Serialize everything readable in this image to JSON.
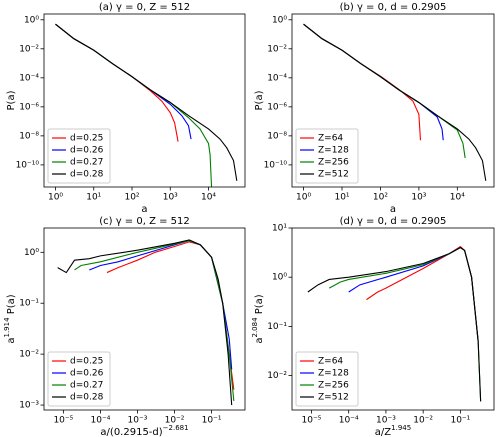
{
  "chart_data": [
    {
      "type": "line",
      "title": "(a) γ = 0, Z = 512",
      "xlabel": [
        "a"
      ],
      "ylabel": [
        "P(a)"
      ],
      "xscale": "log",
      "yscale": "log",
      "legend": "lower left",
      "xlim": [
        0.5,
        90000
      ],
      "ylim": [
        3e-12,
        2.5
      ],
      "xticks": [
        {
          "value": 1,
          "label": "10⁰"
        },
        {
          "value": 10,
          "label": "10¹"
        },
        {
          "value": 100,
          "label": "10²"
        },
        {
          "value": 1000,
          "label": "10³"
        },
        {
          "value": 10000,
          "label": "10⁴"
        }
      ],
      "yticks": [
        {
          "value": 1e-10,
          "label": "10⁻¹⁰"
        },
        {
          "value": 1e-08,
          "label": "10⁻⁸"
        },
        {
          "value": 1e-06,
          "label": "10⁻⁶"
        },
        {
          "value": 0.0001,
          "label": "10⁻⁴"
        },
        {
          "value": 0.01,
          "label": "10⁻²"
        },
        {
          "value": 1,
          "label": "10⁰"
        }
      ],
      "series": [
        {
          "name": "d=0.25",
          "color": "red",
          "x": [
            1,
            3,
            10,
            30,
            100,
            300,
            600,
            1000,
            1300,
            1600
          ],
          "values": [
            0.5,
            0.05,
            0.008,
            0.001,
            0.00012,
            1.3e-05,
            2.5e-06,
            4e-07,
            8e-08,
            4e-09
          ]
        },
        {
          "name": "d=0.26",
          "color": "blue",
          "x": [
            1,
            3,
            10,
            30,
            100,
            300,
            1000,
            2000,
            3000,
            3500
          ],
          "values": [
            0.5,
            0.05,
            0.008,
            0.001,
            0.00012,
            1.5e-05,
            1.5e-06,
            2.5e-07,
            5e-08,
            6e-09
          ]
        },
        {
          "name": "d=0.27",
          "color": "green",
          "x": [
            1,
            3,
            10,
            30,
            100,
            300,
            1000,
            3000,
            6000,
            10000,
            11000,
            12000
          ],
          "values": [
            0.5,
            0.05,
            0.008,
            0.001,
            0.00012,
            1.5e-05,
            2e-06,
            1.8e-07,
            3e-08,
            3e-09,
            5e-10,
            3e-12
          ]
        },
        {
          "name": "d=0.28",
          "color": "black",
          "x": [
            1,
            3,
            10,
            30,
            100,
            300,
            1000,
            3000,
            10000,
            20000,
            30000,
            45000,
            55000
          ],
          "values": [
            0.5,
            0.05,
            0.008,
            0.001,
            0.00012,
            1.5e-05,
            2e-06,
            2.5e-07,
            3e-08,
            6e-09,
            1.5e-09,
            2e-10,
            8e-12
          ]
        }
      ]
    },
    {
      "type": "line",
      "title": "(b) γ = 0, d = 0.2905",
      "xlabel": [
        "a"
      ],
      "ylabel": [
        "P(a)"
      ],
      "xscale": "log",
      "yscale": "log",
      "legend": "lower left",
      "xlim": [
        0.5,
        90000
      ],
      "ylim": [
        3e-12,
        2.5
      ],
      "xticks": [
        {
          "value": 1,
          "label": "10⁰"
        },
        {
          "value": 10,
          "label": "10¹"
        },
        {
          "value": 100,
          "label": "10²"
        },
        {
          "value": 1000,
          "label": "10³"
        },
        {
          "value": 10000,
          "label": "10⁴"
        }
      ],
      "yticks": [
        {
          "value": 1e-10,
          "label": "10⁻¹⁰"
        },
        {
          "value": 1e-08,
          "label": "10⁻⁸"
        },
        {
          "value": 1e-06,
          "label": "10⁻⁶"
        },
        {
          "value": 0.0001,
          "label": "10⁻⁴"
        },
        {
          "value": 0.01,
          "label": "10⁻²"
        },
        {
          "value": 1,
          "label": "10⁰"
        }
      ],
      "series": [
        {
          "name": "Z=64",
          "color": "red",
          "x": [
            1,
            3,
            10,
            30,
            100,
            300,
            700,
            1000,
            1100
          ],
          "values": [
            0.5,
            0.05,
            0.008,
            0.001,
            0.00013,
            1.6e-05,
            2.5e-06,
            3e-07,
            5e-09
          ]
        },
        {
          "name": "Z=128",
          "color": "blue",
          "x": [
            1,
            3,
            10,
            30,
            100,
            300,
            1000,
            3000,
            4000,
            4300
          ],
          "values": [
            0.5,
            0.05,
            0.008,
            0.001,
            0.00012,
            1.5e-05,
            2e-06,
            2e-07,
            3e-08,
            5e-09
          ]
        },
        {
          "name": "Z=256",
          "color": "green",
          "x": [
            1,
            3,
            10,
            30,
            100,
            300,
            1000,
            3000,
            10000,
            14000,
            16000
          ],
          "values": [
            0.5,
            0.05,
            0.008,
            0.001,
            0.00012,
            1.5e-05,
            2e-06,
            2.5e-07,
            2.5e-08,
            3e-09,
            3e-10
          ]
        },
        {
          "name": "Z=512",
          "color": "black",
          "x": [
            1,
            3,
            10,
            30,
            100,
            300,
            1000,
            3000,
            10000,
            20000,
            30000,
            45000,
            55000
          ],
          "values": [
            0.5,
            0.05,
            0.008,
            0.001,
            0.00012,
            1.5e-05,
            2e-06,
            2.5e-07,
            3e-08,
            6e-09,
            1.5e-09,
            2e-10,
            8e-12
          ]
        }
      ]
    },
    {
      "type": "line",
      "title": "(c) γ = 0, Z = 512",
      "xlabel": [
        "a/(0.2915-d)",
        "−2.681"
      ],
      "ylabel": [
        "a",
        "1.914",
        " P(a)"
      ],
      "xscale": "log",
      "yscale": "log",
      "legend": "lower left",
      "xlim": [
        3e-06,
        0.8
      ],
      "ylim": [
        0.0008,
        3
      ],
      "xticks": [
        {
          "value": 1e-05,
          "label": "10⁻⁵"
        },
        {
          "value": 0.0001,
          "label": "10⁻⁴"
        },
        {
          "value": 0.001,
          "label": "10⁻³"
        },
        {
          "value": 0.01,
          "label": "10⁻²"
        },
        {
          "value": 0.1,
          "label": "10⁻¹"
        }
      ],
      "yticks": [
        {
          "value": 0.001,
          "label": "10⁻³"
        },
        {
          "value": 0.01,
          "label": "10⁻²"
        },
        {
          "value": 0.1,
          "label": "10⁻¹"
        },
        {
          "value": 1,
          "label": "10⁰"
        }
      ],
      "series": [
        {
          "name": "d=0.25",
          "color": "red",
          "x": [
            0.00015,
            0.0003,
            0.001,
            0.003,
            0.01,
            0.025,
            0.05,
            0.1,
            0.2,
            0.3,
            0.4
          ],
          "values": [
            0.4,
            0.5,
            0.7,
            1.0,
            1.3,
            1.6,
            1.4,
            0.8,
            0.1,
            0.01,
            0.002
          ]
        },
        {
          "name": "d=0.26",
          "color": "blue",
          "x": [
            5e-05,
            0.0001,
            0.0003,
            0.001,
            0.01,
            0.025,
            0.05,
            0.1,
            0.2,
            0.3,
            0.35
          ],
          "values": [
            0.45,
            0.55,
            0.65,
            0.85,
            1.4,
            1.7,
            1.4,
            0.8,
            0.1,
            0.02,
            0.005
          ]
        },
        {
          "name": "d=0.27",
          "color": "green",
          "x": [
            2e-05,
            3e-05,
            0.0001,
            0.001,
            0.01,
            0.025,
            0.05,
            0.1,
            0.2,
            0.3,
            0.4
          ],
          "values": [
            0.45,
            0.55,
            0.65,
            1.0,
            1.45,
            1.7,
            1.4,
            0.8,
            0.1,
            0.01,
            0.0012
          ]
        },
        {
          "name": "d=0.28",
          "color": "black",
          "x": [
            7e-06,
            1.2e-05,
            2e-05,
            5e-05,
            0.0001,
            0.001,
            0.01,
            0.025,
            0.05,
            0.1,
            0.15,
            0.2,
            0.28,
            0.35
          ],
          "values": [
            0.5,
            0.4,
            0.7,
            0.75,
            0.85,
            1.1,
            1.5,
            1.75,
            1.4,
            0.8,
            0.3,
            0.1,
            0.01,
            0.001
          ]
        }
      ]
    },
    {
      "type": "line",
      "title": "(d) γ = 0, d = 0.2905",
      "xlabel": [
        "a/Z",
        "1.945"
      ],
      "ylabel": [
        "a",
        "2.084",
        " P(a)"
      ],
      "xscale": "log",
      "yscale": "log",
      "legend": "lower left",
      "xlim": [
        3e-06,
        0.8
      ],
      "ylim": [
        0.002,
        10
      ],
      "xticks": [
        {
          "value": 1e-05,
          "label": "10⁻⁵"
        },
        {
          "value": 0.0001,
          "label": "10⁻⁴"
        },
        {
          "value": 0.001,
          "label": "10⁻³"
        },
        {
          "value": 0.01,
          "label": "10⁻²"
        },
        {
          "value": 0.1,
          "label": "10⁻¹"
        }
      ],
      "yticks": [
        {
          "value": 0.01,
          "label": "10⁻²"
        },
        {
          "value": 0.1,
          "label": "10⁻¹"
        },
        {
          "value": 1,
          "label": "10⁰"
        },
        {
          "value": 10,
          "label": "10¹"
        }
      ],
      "series": [
        {
          "name": "Z=64",
          "color": "red",
          "x": [
            0.0003,
            0.0006,
            0.001,
            0.01,
            0.05,
            0.1,
            0.13,
            0.2,
            0.3
          ],
          "values": [
            0.35,
            0.5,
            0.6,
            1.5,
            3,
            4.2,
            3.5,
            1,
            0.05
          ]
        },
        {
          "name": "Z=128",
          "color": "blue",
          "x": [
            0.0001,
            0.0002,
            0.001,
            0.01,
            0.05,
            0.1,
            0.13,
            0.2,
            0.3
          ],
          "values": [
            0.5,
            0.7,
            1.0,
            1.7,
            3,
            4,
            3.5,
            1,
            0.05
          ]
        },
        {
          "name": "Z=256",
          "color": "green",
          "x": [
            3e-05,
            6e-05,
            0.0001,
            0.001,
            0.01,
            0.05,
            0.1,
            0.13,
            0.2,
            0.3,
            0.35
          ],
          "values": [
            0.6,
            0.8,
            0.9,
            1.2,
            1.8,
            3,
            4,
            3.5,
            1,
            0.05,
            0.003
          ]
        },
        {
          "name": "Z=512",
          "color": "black",
          "x": [
            8e-06,
            1.5e-05,
            3e-05,
            0.0001,
            0.001,
            0.01,
            0.05,
            0.1,
            0.13,
            0.2,
            0.3,
            0.35
          ],
          "values": [
            0.5,
            0.7,
            0.9,
            1.0,
            1.3,
            1.9,
            3,
            4,
            3.5,
            1,
            0.05,
            0.003
          ]
        }
      ]
    }
  ]
}
